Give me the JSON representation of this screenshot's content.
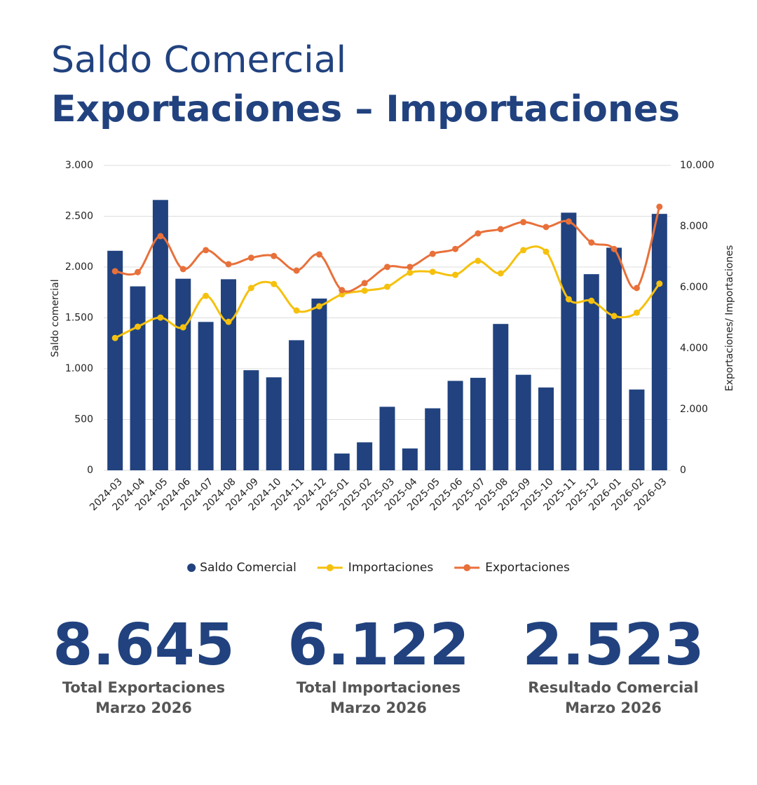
{
  "chart_data": {
    "type": "bar",
    "title": "Saldo Comercial",
    "subtitle": "Exportaciones – Importaciones",
    "ylabel": "Saldo comercial",
    "y2label": "Exportaciones/ Importaciones",
    "categories": [
      "2024-03",
      "2024-04",
      "2024-05",
      "2024-06",
      "2024-07",
      "2024-08",
      "2024-09",
      "2024-10",
      "2024-11",
      "2024-12",
      "2025-01",
      "2025-02",
      "2025-03",
      "2025-04",
      "2025-05",
      "2025-06",
      "2025-07",
      "2025-08",
      "2025-09",
      "2025-10",
      "2025-11",
      "2025-12",
      "2026-01",
      "2026-02",
      "2026-03"
    ],
    "series": [
      {
        "name": "Saldo Comercial",
        "type": "bar",
        "color": "#21427f",
        "values": [
          2160,
          1810,
          2660,
          1885,
          1460,
          1880,
          985,
          915,
          1280,
          1690,
          165,
          275,
          625,
          215,
          610,
          880,
          910,
          1440,
          940,
          815,
          2535,
          1930,
          2190,
          795,
          2523
        ]
      },
      {
        "name": "Importaciones",
        "type": "line",
        "axis": "y2",
        "color": "#f5c10e",
        "values": [
          4340,
          4710,
          5010,
          4690,
          5720,
          4870,
          5980,
          6110,
          5240,
          5380,
          5770,
          5890,
          6020,
          6480,
          6510,
          6410,
          6870,
          6460,
          7220,
          7170,
          5610,
          5560,
          5060,
          5170,
          6122
        ]
      },
      {
        "name": "Exportaciones",
        "type": "line",
        "axis": "y2",
        "color": "#e8703a",
        "values": [
          6530,
          6500,
          7680,
          6600,
          7220,
          6760,
          6970,
          7030,
          6550,
          7080,
          5910,
          6140,
          6670,
          6670,
          7100,
          7260,
          7770,
          7910,
          8140,
          7980,
          8160,
          7470,
          7260,
          5980,
          8645
        ]
      }
    ],
    "ylim": [
      0,
      3000
    ],
    "yticks": [
      0,
      500,
      {
        "value": 1000,
        "label": "1.000"
      },
      {
        "value": 1500,
        "label": "1.500"
      },
      {
        "value": 2000,
        "label": "2.000"
      },
      {
        "value": 2500,
        "label": "2.500"
      },
      {
        "value": 3000,
        "label": "3.000"
      }
    ],
    "y2lim": [
      0,
      10000
    ],
    "y2ticks": [
      0,
      {
        "value": 2000,
        "label": "2.000"
      },
      {
        "value": 4000,
        "label": "4.000"
      },
      {
        "value": 6000,
        "label": "6.000"
      },
      {
        "value": 8000,
        "label": "8.000"
      },
      {
        "value": 10000,
        "label": "10.000"
      }
    ],
    "grid": true,
    "legend": "bottom"
  },
  "kpis": [
    {
      "value": "8.645",
      "label": [
        "Total Exportaciones",
        "Marzo 2026"
      ]
    },
    {
      "value": "6.122",
      "label": [
        "Total Importaciones",
        "Marzo 2026"
      ]
    },
    {
      "value": "2.523",
      "label": [
        "Resultado Comercial",
        "Marzo 2026"
      ]
    }
  ]
}
